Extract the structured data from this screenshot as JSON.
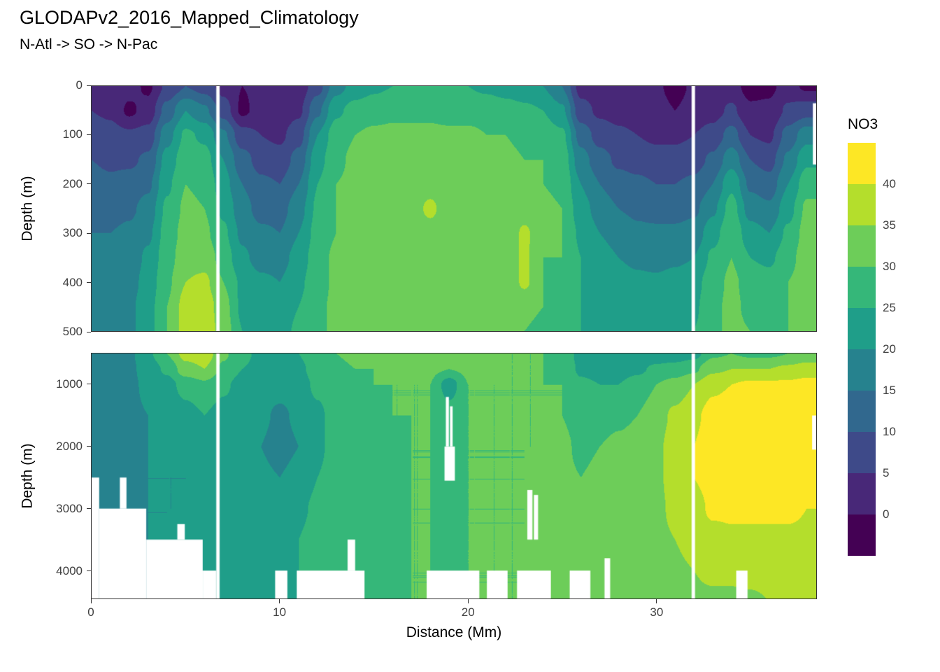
{
  "title": "GLODAPv2_2016_Mapped_Climatology",
  "subtitle": "N-Atl -> SO -> N-Pac",
  "axes": {
    "x_label": "Distance (Mm)",
    "y_label": "Depth (m)",
    "x_ticks": [
      0,
      10,
      20,
      30
    ],
    "y_ticks_upper": [
      0,
      100,
      200,
      300,
      400,
      500
    ],
    "y_ticks_lower": [
      1000,
      2000,
      3000,
      4000
    ]
  },
  "legend": {
    "title": "NO3",
    "tick_labels_top_to_bottom": [
      "40",
      "35",
      "30",
      "25",
      "20",
      "15",
      "10",
      "5",
      "0"
    ]
  },
  "chart_data": {
    "type": "heatmap",
    "title": "GLODAPv2_2016_Mapped_Climatology",
    "subtitle": "N-Atl -> SO -> N-Pac",
    "variable": "NO3",
    "xlabel": "Distance (Mm)",
    "ylabel": "Depth (m)",
    "x_domain": [
      0,
      38.5
    ],
    "x": [
      0,
      1,
      2,
      3,
      4,
      5,
      6,
      7,
      8,
      9,
      10,
      11,
      12,
      13,
      14,
      15,
      16,
      17,
      18,
      19,
      20,
      21,
      22,
      23,
      24,
      25,
      26,
      27,
      28,
      29,
      30,
      31,
      32,
      33,
      34,
      35,
      36,
      37,
      38
    ],
    "colormap": {
      "breaks": [
        0,
        5,
        10,
        15,
        20,
        25,
        30,
        35,
        40
      ],
      "colors": [
        "#440154",
        "#482878",
        "#3E4A89",
        "#31688E",
        "#26828E",
        "#1F9E89",
        "#35B779",
        "#6DCD59",
        "#B4DE2C",
        "#FDE725"
      ]
    },
    "panels": [
      {
        "name": "upper",
        "z_domain": [
          0,
          500
        ],
        "depths": [
          0,
          50,
          100,
          150,
          200,
          250,
          300,
          350,
          400,
          450,
          500
        ],
        "values": [
          [
            4,
            3,
            2,
            -1,
            6,
            10,
            8,
            3,
            0,
            1,
            1,
            2,
            8,
            18,
            22,
            24,
            25,
            26,
            26,
            25,
            25,
            24,
            23,
            22,
            20,
            15,
            3,
            2,
            1,
            0,
            1,
            -2,
            1,
            1,
            2,
            -2,
            -1,
            2,
            -1
          ],
          [
            5,
            4,
            -1,
            2,
            12,
            20,
            16,
            8,
            -1,
            2,
            2,
            4,
            14,
            24,
            27,
            28,
            29,
            29,
            29,
            28,
            28,
            28,
            27,
            26,
            25,
            21,
            7,
            4,
            3,
            2,
            2,
            0,
            2,
            3,
            6,
            1,
            1,
            6,
            8
          ],
          [
            8,
            7,
            6,
            7,
            18,
            26,
            24,
            16,
            7,
            5,
            4,
            8,
            20,
            28,
            30,
            31,
            31,
            31,
            31,
            31,
            31,
            30,
            30,
            29,
            28,
            26,
            13,
            8,
            6,
            5,
            4,
            4,
            5,
            7,
            12,
            5,
            4,
            12,
            18
          ],
          [
            10,
            9,
            9,
            11,
            22,
            28,
            27,
            20,
            12,
            8,
            7,
            12,
            23,
            29,
            31,
            31,
            32,
            32,
            32,
            32,
            32,
            31,
            31,
            30,
            30,
            28,
            17,
            12,
            9,
            8,
            7,
            7,
            8,
            11,
            18,
            10,
            8,
            16,
            24
          ],
          [
            12,
            11,
            12,
            14,
            24,
            30,
            29,
            22,
            15,
            11,
            10,
            15,
            25,
            30,
            31,
            32,
            32,
            32,
            33,
            32,
            32,
            32,
            31,
            31,
            30,
            29,
            20,
            15,
            12,
            11,
            10,
            10,
            11,
            15,
            24,
            14,
            12,
            20,
            28
          ],
          [
            14,
            13,
            14,
            17,
            26,
            31,
            30,
            24,
            17,
            13,
            13,
            18,
            26,
            30,
            31,
            32,
            32,
            33,
            36,
            32,
            32,
            32,
            31,
            32,
            31,
            30,
            22,
            18,
            15,
            14,
            13,
            13,
            14,
            19,
            27,
            18,
            16,
            23,
            31
          ],
          [
            15,
            15,
            16,
            19,
            27,
            32,
            31,
            26,
            19,
            16,
            15,
            20,
            27,
            30,
            31,
            32,
            32,
            32,
            33,
            32,
            32,
            31,
            31,
            36,
            31,
            30,
            24,
            20,
            18,
            16,
            16,
            16,
            17,
            23,
            29,
            22,
            20,
            26,
            32
          ],
          [
            16,
            16,
            17,
            21,
            28,
            33,
            33,
            28,
            21,
            18,
            18,
            22,
            28,
            31,
            31,
            32,
            32,
            32,
            32,
            32,
            31,
            31,
            31,
            36,
            30,
            30,
            25,
            22,
            20,
            19,
            18,
            19,
            20,
            26,
            30,
            25,
            24,
            28,
            33
          ],
          [
            17,
            17,
            18,
            22,
            29,
            35,
            36,
            30,
            24,
            21,
            20,
            24,
            28,
            31,
            31,
            31,
            32,
            32,
            32,
            32,
            31,
            31,
            31,
            36,
            30,
            29,
            25,
            23,
            22,
            21,
            21,
            22,
            23,
            28,
            31,
            28,
            27,
            30,
            33
          ],
          [
            17,
            18,
            19,
            23,
            30,
            37,
            38,
            32,
            24,
            23,
            22,
            25,
            29,
            31,
            31,
            31,
            31,
            32,
            32,
            31,
            31,
            31,
            30,
            31,
            30,
            29,
            25,
            24,
            23,
            22,
            22,
            23,
            24,
            29,
            31,
            29,
            28,
            30,
            33
          ],
          [
            17,
            18,
            19,
            23,
            30,
            37,
            38,
            33,
            25,
            24,
            23,
            26,
            29,
            31,
            31,
            31,
            31,
            31,
            31,
            31,
            31,
            30,
            30,
            30,
            29,
            29,
            25,
            24,
            23,
            23,
            23,
            24,
            25,
            29,
            31,
            30,
            29,
            30,
            33
          ]
        ]
      },
      {
        "name": "lower",
        "z_domain": [
          500,
          4450
        ],
        "depths": [
          500,
          750,
          1000,
          1500,
          2000,
          2500,
          3000,
          3500,
          4000,
          4500
        ],
        "values": [
          [
            17,
            18,
            19,
            24,
            30,
            37,
            38,
            31,
            26,
            24,
            23,
            25,
            28,
            30,
            31,
            31,
            31,
            31,
            31,
            31,
            31,
            31,
            30,
            30,
            30,
            29,
            23,
            22,
            21,
            21,
            22,
            22,
            23,
            29,
            30,
            29,
            29,
            30,
            32
          ],
          [
            18,
            18,
            19,
            22,
            26,
            33,
            35,
            29,
            25,
            24,
            23,
            24,
            27,
            29,
            30,
            30,
            31,
            31,
            31,
            30,
            31,
            31,
            30,
            30,
            30,
            29,
            24,
            23,
            23,
            24,
            26,
            27,
            29,
            34,
            35,
            35,
            35,
            36,
            37
          ],
          [
            18,
            19,
            19,
            21,
            23,
            27,
            29,
            26,
            23,
            23,
            22,
            23,
            26,
            28,
            29,
            30,
            30,
            30,
            30,
            22,
            30,
            30,
            30,
            30,
            30,
            30,
            26,
            25,
            25,
            27,
            30,
            32,
            35,
            39,
            40,
            41,
            41,
            41,
            42
          ],
          [
            18,
            19,
            19,
            20,
            21,
            23,
            25,
            23,
            22,
            21,
            19,
            21,
            24,
            27,
            28,
            29,
            30,
            30,
            30,
            28,
            30,
            30,
            30,
            30,
            30,
            30,
            28,
            28,
            29,
            30,
            33,
            36,
            39,
            42,
            43,
            43,
            43,
            43,
            43
          ],
          [
            18,
            19,
            19,
            20,
            20,
            21,
            22,
            22,
            21,
            20,
            18,
            20,
            24,
            27,
            28,
            29,
            29,
            30,
            30,
            29,
            30,
            30,
            30,
            30,
            30,
            31,
            29,
            30,
            31,
            32,
            34,
            37,
            40,
            43,
            43,
            43,
            43,
            42,
            42
          ],
          [
            18,
            19,
            19,
            20,
            20,
            20,
            21,
            21,
            21,
            21,
            20,
            22,
            25,
            27,
            28,
            29,
            29,
            30,
            30,
            29,
            30,
            30,
            30,
            30,
            31,
            31,
            30,
            31,
            32,
            33,
            34,
            37,
            40,
            42,
            43,
            42,
            42,
            42,
            42
          ],
          [
            18,
            19,
            19,
            20,
            20,
            20,
            21,
            21,
            22,
            22,
            22,
            24,
            26,
            28,
            28,
            29,
            29,
            30,
            30,
            29,
            30,
            30,
            30,
            30,
            31,
            31,
            30,
            31,
            32,
            33,
            34,
            36,
            38,
            41,
            41,
            41,
            41,
            41,
            40
          ],
          [
            18,
            19,
            19,
            20,
            20,
            21,
            21,
            22,
            22,
            23,
            23,
            25,
            27,
            28,
            28,
            29,
            29,
            30,
            30,
            29,
            30,
            30,
            30,
            30,
            31,
            31,
            30,
            31,
            32,
            33,
            34,
            35,
            37,
            38,
            39,
            39,
            39,
            39,
            39
          ],
          [
            18,
            19,
            19,
            20,
            20,
            21,
            21,
            22,
            23,
            23,
            24,
            25,
            27,
            28,
            28,
            29,
            29,
            30,
            30,
            29,
            30,
            30,
            30,
            30,
            31,
            31,
            30,
            31,
            32,
            32,
            33,
            34,
            35,
            36,
            36,
            37,
            37,
            37,
            37
          ],
          [
            18,
            19,
            19,
            20,
            20,
            21,
            21,
            22,
            23,
            23,
            24,
            25,
            27,
            28,
            28,
            29,
            29,
            30,
            30,
            29,
            30,
            30,
            30,
            30,
            31,
            31,
            30,
            31,
            32,
            32,
            33,
            34,
            34,
            34,
            34,
            34,
            35,
            35,
            35
          ]
        ]
      }
    ],
    "no_data_mask_rects_x0_x1_z0_z1": [
      [
        6.62,
        6.8,
        0,
        4500
      ],
      [
        31.88,
        32.06,
        0,
        4500
      ],
      [
        38.32,
        38.5,
        35,
        160
      ],
      [
        0.0,
        0.4,
        2500,
        4500
      ],
      [
        0.4,
        2.9,
        3000,
        4500
      ],
      [
        1.5,
        1.85,
        2500,
        3000
      ],
      [
        2.9,
        5.9,
        3500,
        4500
      ],
      [
        4.55,
        4.95,
        3250,
        3500
      ],
      [
        5.9,
        6.62,
        4000,
        4500
      ],
      [
        9.75,
        10.4,
        4000,
        4500
      ],
      [
        10.9,
        14.5,
        4000,
        4500
      ],
      [
        13.6,
        14.0,
        3500,
        4000
      ],
      [
        17.8,
        20.6,
        4000,
        4500
      ],
      [
        18.82,
        18.98,
        1200,
        2000
      ],
      [
        19.04,
        19.18,
        1350,
        2000
      ],
      [
        18.75,
        19.3,
        2000,
        2550
      ],
      [
        21.0,
        22.1,
        4000,
        4500
      ],
      [
        22.6,
        24.4,
        4000,
        4500
      ],
      [
        23.15,
        23.42,
        2700,
        3500
      ],
      [
        23.5,
        23.72,
        2780,
        3500
      ],
      [
        25.4,
        26.5,
        4000,
        4500
      ],
      [
        27.25,
        27.55,
        3800,
        4500
      ],
      [
        34.25,
        34.85,
        4000,
        4500
      ],
      [
        38.28,
        38.5,
        1500,
        2050
      ]
    ]
  }
}
